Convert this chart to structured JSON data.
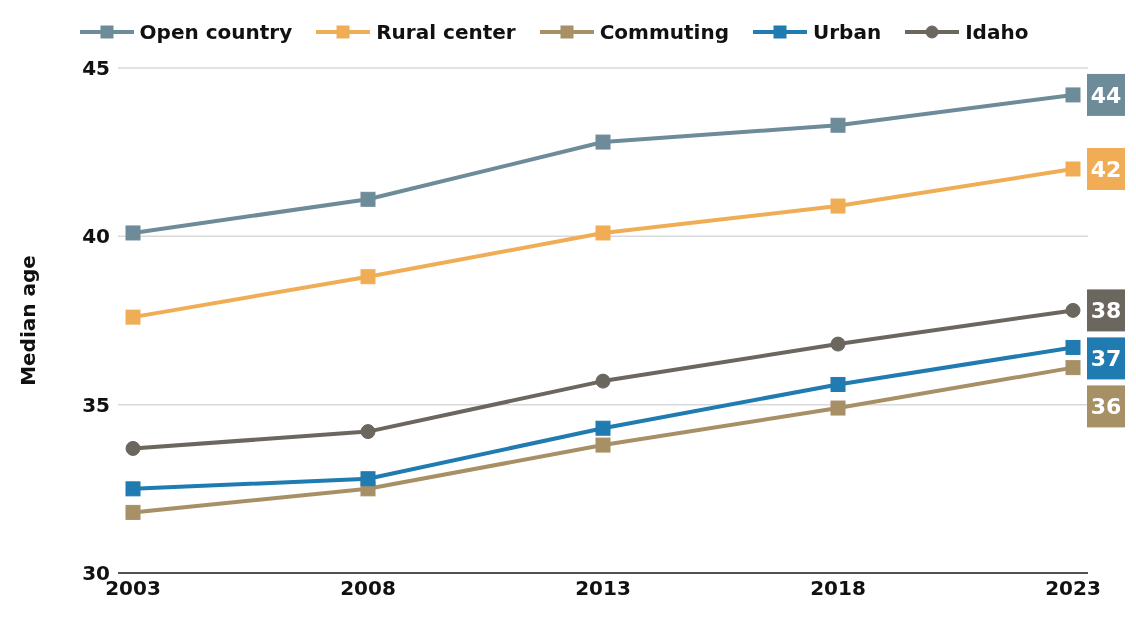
{
  "chart_data": {
    "type": "line",
    "ylabel": "Median age",
    "categories": [
      "2003",
      "2008",
      "2013",
      "2018",
      "2023"
    ],
    "ylim": [
      30,
      45
    ],
    "yticks": [
      30,
      35,
      40,
      45
    ],
    "grid": "y",
    "legend": "top",
    "line_style": "solid",
    "series": [
      {
        "name": "Open country",
        "color": "#6e8b9a",
        "marker": "square",
        "values": [
          40.1,
          41.1,
          42.8,
          43.3,
          44.2
        ],
        "value_labels": [
          null,
          null,
          null,
          null,
          "44"
        ]
      },
      {
        "name": "Rural center",
        "color": "#f0ad55",
        "marker": "square",
        "values": [
          37.6,
          38.8,
          40.1,
          40.9,
          42.0
        ],
        "value_labels": [
          null,
          null,
          null,
          null,
          "42"
        ]
      },
      {
        "name": "Commuting",
        "color": "#a89066",
        "marker": "square",
        "values": [
          31.8,
          32.5,
          33.8,
          34.9,
          36.1
        ],
        "value_labels": [
          null,
          null,
          null,
          null,
          "36"
        ]
      },
      {
        "name": "Urban",
        "color": "#1f7bb0",
        "marker": "square",
        "values": [
          32.5,
          32.8,
          34.3,
          35.6,
          36.7
        ],
        "value_labels": [
          null,
          null,
          null,
          null,
          "37"
        ]
      },
      {
        "name": "Idaho",
        "color": "#6b665e",
        "marker": "circle",
        "values": [
          33.7,
          34.2,
          35.7,
          36.8,
          37.8
        ],
        "value_labels": [
          null,
          null,
          null,
          null,
          "38"
        ]
      }
    ]
  }
}
